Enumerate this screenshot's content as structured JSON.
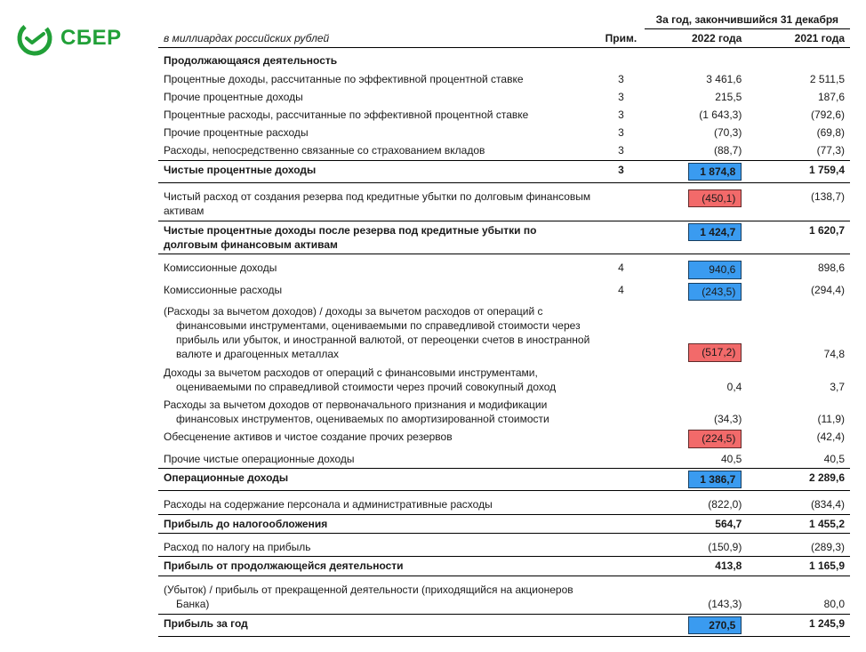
{
  "brand": {
    "name": "СБЕР"
  },
  "colors": {
    "brand_green": "#21a038",
    "hl_blue": "#3a9bf0",
    "hl_red": "#f26a6a",
    "rule": "#000000"
  },
  "header": {
    "unit_note": "в миллиардах российских рублей",
    "col_note": "Прим.",
    "period_super": "За год, закончившийся 31 декабря",
    "col_2022": "2022 года",
    "col_2021": "2021 года"
  },
  "rows": [
    {
      "type": "section",
      "label": "Продолжающаяся деятельность"
    },
    {
      "type": "line",
      "label": "Процентные доходы, рассчитанные по эффективной процентной ставке",
      "note": "3",
      "v22": "3 461,6",
      "v21": "2 511,5"
    },
    {
      "type": "line",
      "label": "Прочие процентные доходы",
      "note": "3",
      "v22": "215,5",
      "v21": "187,6"
    },
    {
      "type": "line",
      "label": "Процентные расходы, рассчитанные по эффективной процентной ставке",
      "note": "3",
      "v22": "(1 643,3)",
      "v21": "(792,6)"
    },
    {
      "type": "line",
      "label": "Прочие процентные расходы",
      "note": "3",
      "v22": "(70,3)",
      "v21": "(69,8)"
    },
    {
      "type": "line",
      "label": "Расходы, непосредственно связанные со страхованием вкладов",
      "note": "3",
      "v22": "(88,7)",
      "v21": "(77,3)"
    },
    {
      "type": "subtotal",
      "label": "Чистые процентные доходы",
      "note": "3",
      "v22": "1 874,8",
      "v21": "1 759,4",
      "hl22": "blue"
    },
    {
      "type": "line",
      "label": "Чистый расход от создания резерва под кредитные убытки по долговым финансовым активам",
      "v22": "(450,1)",
      "v21": "(138,7)",
      "hl22": "red"
    },
    {
      "type": "subtotal",
      "label": "Чистые процентные доходы после резерва под кредитные убытки по долговым финансовым активам",
      "v22": "1 424,7",
      "v21": "1 620,7",
      "hl22": "blue"
    },
    {
      "type": "line",
      "label": "Комиссионные доходы",
      "note": "4",
      "v22": "940,6",
      "v21": "898,6",
      "hl22": "blue"
    },
    {
      "type": "line",
      "label": "Комиссионные расходы",
      "note": "4",
      "v22": "(243,5)",
      "v21": "(294,4)",
      "hl22": "blue"
    },
    {
      "type": "line",
      "label": "(Расходы за вычетом доходов) / доходы за вычетом расходов от операций с финансовыми инструментами, оцениваемыми по справедливой стоимости через прибыль или убыток, и иностранной валютой, от переоценки счетов в иностранной валюте и драгоценных металлах",
      "v22": "(517,2)",
      "v21": "74,8",
      "hl22": "red",
      "wrap": true
    },
    {
      "type": "line",
      "label": "Доходы за вычетом расходов от операций с финансовыми инструментами, оцениваемыми по справедливой стоимости через прочий совокупный доход",
      "v22": "0,4",
      "v21": "3,7",
      "wrap": true
    },
    {
      "type": "line",
      "label": "Расходы за вычетом доходов от первоначального признания и модификации финансовых инструментов, оцениваемых по амортизированной стоимости",
      "v22": "(34,3)",
      "v21": "(11,9)",
      "wrap": true
    },
    {
      "type": "line",
      "label": "Обесценение активов и чистое создание прочих резервов",
      "v22": "(224,5)",
      "v21": "(42,4)",
      "hl22": "red"
    },
    {
      "type": "line",
      "label": "Прочие чистые операционные доходы",
      "v22": "40,5",
      "v21": "40,5"
    },
    {
      "type": "subtotal",
      "label": "Операционные доходы",
      "v22": "1 386,7",
      "v21": "2 289,6",
      "hl22": "blue"
    },
    {
      "type": "line",
      "label": "Расходы на содержание персонала и административные расходы",
      "v22": "(822,0)",
      "v21": "(834,4)"
    },
    {
      "type": "subtotal",
      "label": "Прибыль до налогообложения",
      "v22": "564,7",
      "v21": "1 455,2"
    },
    {
      "type": "line",
      "label": "Расход по налогу на прибыль",
      "v22": "(150,9)",
      "v21": "(289,3)"
    },
    {
      "type": "subtotal",
      "label": "Прибыль от продолжающейся деятельности",
      "v22": "413,8",
      "v21": "1 165,9"
    },
    {
      "type": "line",
      "label": "(Убыток) / прибыль от прекращенной деятельности (приходящийся на акционеров Банка)",
      "v22": "(143,3)",
      "v21": "80,0",
      "wrap": true
    },
    {
      "type": "subtotal",
      "label": "Прибыль за год",
      "v22": "270,5",
      "v21": "1 245,9",
      "hl22": "blue"
    }
  ]
}
